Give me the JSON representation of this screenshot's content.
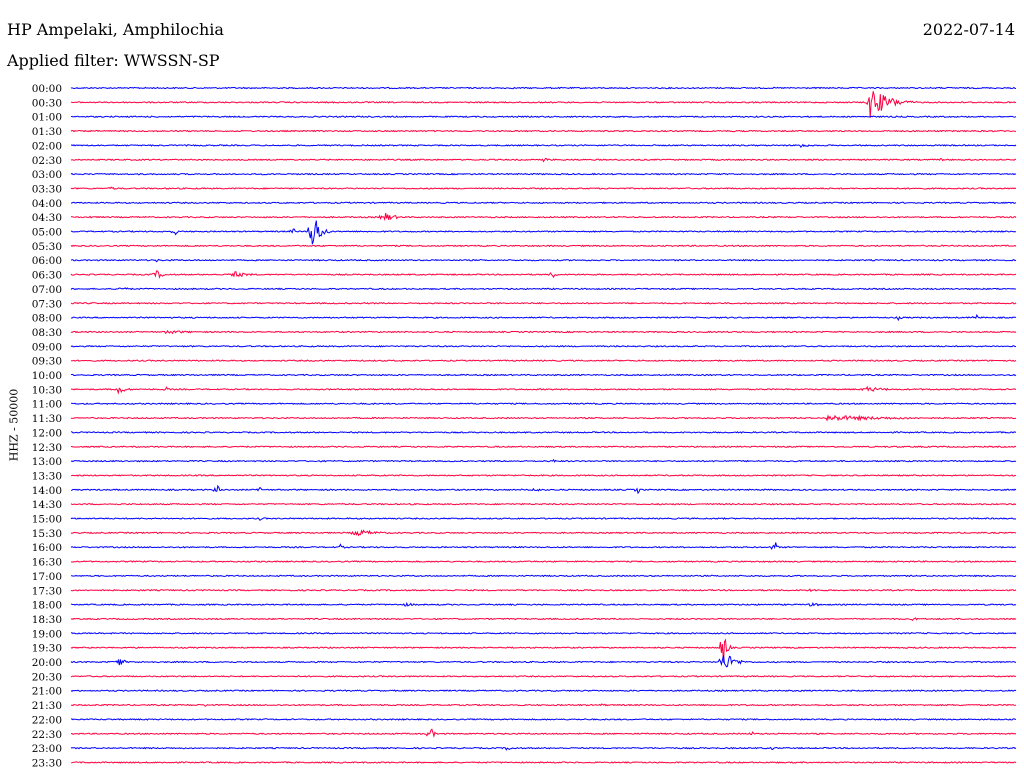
{
  "header": {
    "station": "HP Ampelaki, Amphilochia",
    "date": "2022-07-14",
    "filter": "Applied filter: WWSSN-SP"
  },
  "chart_data": {
    "type": "line",
    "title": "HP Ampelaki, Amphilochia",
    "ylabel": "HHZ - 50000",
    "trace_colors": [
      "#0000ff",
      "#ff0040"
    ],
    "rows": [
      {
        "label": "00:00",
        "color": "#0000ff",
        "events": []
      },
      {
        "label": "00:30",
        "color": "#ff0040",
        "events": [
          {
            "x": 0.845,
            "amp": 18,
            "w": 0.05
          }
        ]
      },
      {
        "label": "01:00",
        "color": "#0000ff",
        "events": []
      },
      {
        "label": "01:30",
        "color": "#ff0040",
        "events": []
      },
      {
        "label": "02:00",
        "color": "#0000ff",
        "events": [
          {
            "x": 0.77,
            "amp": 3,
            "w": 0.03
          }
        ]
      },
      {
        "label": "02:30",
        "color": "#ff0040",
        "events": [
          {
            "x": 0.5,
            "amp": 2,
            "w": 0.03
          },
          {
            "x": 0.92,
            "amp": 2,
            "w": 0.01
          }
        ]
      },
      {
        "label": "03:00",
        "color": "#0000ff",
        "events": []
      },
      {
        "label": "03:30",
        "color": "#ff0040",
        "events": [
          {
            "x": 0.04,
            "amp": 2,
            "w": 0.03
          }
        ]
      },
      {
        "label": "04:00",
        "color": "#0000ff",
        "events": []
      },
      {
        "label": "04:30",
        "color": "#ff0040",
        "events": [
          {
            "x": 0.33,
            "amp": 6,
            "w": 0.03
          },
          {
            "x": 0.02,
            "amp": 2,
            "w": 0.005
          }
        ]
      },
      {
        "label": "05:00",
        "color": "#0000ff",
        "events": [
          {
            "x": 0.255,
            "amp": 26,
            "w": 0.02
          },
          {
            "x": 0.11,
            "amp": 4,
            "w": 0.008
          },
          {
            "x": 0.235,
            "amp": 4,
            "w": 0.008
          }
        ]
      },
      {
        "label": "05:30",
        "color": "#ff0040",
        "events": []
      },
      {
        "label": "06:00",
        "color": "#0000ff",
        "events": [
          {
            "x": 0.09,
            "amp": 2,
            "w": 0.01
          }
        ]
      },
      {
        "label": "06:30",
        "color": "#ff0040",
        "events": [
          {
            "x": 0.09,
            "amp": 5,
            "w": 0.02
          },
          {
            "x": 0.17,
            "amp": 4,
            "w": 0.04
          },
          {
            "x": 0.51,
            "amp": 6,
            "w": 0.006
          }
        ]
      },
      {
        "label": "07:00",
        "color": "#0000ff",
        "events": [
          {
            "x": 0.05,
            "amp": 2,
            "w": 0.04
          }
        ]
      },
      {
        "label": "07:30",
        "color": "#ff0040",
        "events": []
      },
      {
        "label": "08:00",
        "color": "#0000ff",
        "events": [
          {
            "x": 0.875,
            "amp": 3,
            "w": 0.01
          },
          {
            "x": 0.958,
            "amp": 4,
            "w": 0.006
          }
        ]
      },
      {
        "label": "08:30",
        "color": "#ff0040",
        "events": [
          {
            "x": 0.1,
            "amp": 2,
            "w": 0.08
          }
        ]
      },
      {
        "label": "09:00",
        "color": "#0000ff",
        "events": []
      },
      {
        "label": "09:30",
        "color": "#ff0040",
        "events": []
      },
      {
        "label": "10:00",
        "color": "#0000ff",
        "events": []
      },
      {
        "label": "10:30",
        "color": "#ff0040",
        "events": [
          {
            "x": 0.05,
            "amp": 5,
            "w": 0.02
          },
          {
            "x": 0.1,
            "amp": 3,
            "w": 0.01
          },
          {
            "x": 0.84,
            "amp": 3,
            "w": 0.06
          }
        ]
      },
      {
        "label": "11:00",
        "color": "#0000ff",
        "events": []
      },
      {
        "label": "11:30",
        "color": "#ff0040",
        "events": [
          {
            "x": 0.8,
            "amp": 3,
            "w": 0.2
          }
        ]
      },
      {
        "label": "12:00",
        "color": "#0000ff",
        "events": []
      },
      {
        "label": "12:30",
        "color": "#ff0040",
        "events": []
      },
      {
        "label": "13:00",
        "color": "#0000ff",
        "events": [
          {
            "x": 0.51,
            "amp": 2,
            "w": 0.01
          }
        ]
      },
      {
        "label": "13:30",
        "color": "#ff0040",
        "events": []
      },
      {
        "label": "14:00",
        "color": "#0000ff",
        "events": [
          {
            "x": 0.155,
            "amp": 6,
            "w": 0.006
          },
          {
            "x": 0.2,
            "amp": 5,
            "w": 0.004
          },
          {
            "x": 0.49,
            "amp": 5,
            "w": 0.01
          },
          {
            "x": 0.6,
            "amp": 5,
            "w": 0.004
          }
        ]
      },
      {
        "label": "14:30",
        "color": "#ff0040",
        "events": [
          {
            "x": 0.58,
            "amp": 2,
            "w": 0.01
          }
        ]
      },
      {
        "label": "15:00",
        "color": "#0000ff",
        "events": [
          {
            "x": 0.2,
            "amp": 2,
            "w": 0.01
          }
        ]
      },
      {
        "label": "15:30",
        "color": "#ff0040",
        "events": [
          {
            "x": 0.3,
            "amp": 4,
            "w": 0.06
          }
        ]
      },
      {
        "label": "16:00",
        "color": "#0000ff",
        "events": [
          {
            "x": 0.745,
            "amp": 9,
            "w": 0.005
          },
          {
            "x": 0.285,
            "amp": 3,
            "w": 0.01
          }
        ]
      },
      {
        "label": "16:30",
        "color": "#ff0040",
        "events": []
      },
      {
        "label": "17:00",
        "color": "#0000ff",
        "events": []
      },
      {
        "label": "17:30",
        "color": "#ff0040",
        "events": [
          {
            "x": 0.78,
            "amp": 2,
            "w": 0.03
          }
        ]
      },
      {
        "label": "18:00",
        "color": "#0000ff",
        "events": [
          {
            "x": 0.35,
            "amp": 2,
            "w": 0.05
          },
          {
            "x": 0.78,
            "amp": 2,
            "w": 0.05
          }
        ]
      },
      {
        "label": "18:30",
        "color": "#ff0040",
        "events": [
          {
            "x": 0.89,
            "amp": 2,
            "w": 0.02
          }
        ]
      },
      {
        "label": "19:00",
        "color": "#0000ff",
        "events": []
      },
      {
        "label": "19:30",
        "color": "#ff0040",
        "events": [
          {
            "x": 0.69,
            "amp": 20,
            "w": 0.01
          }
        ]
      },
      {
        "label": "20:00",
        "color": "#0000ff",
        "events": [
          {
            "x": 0.69,
            "amp": 12,
            "w": 0.03
          },
          {
            "x": 0.05,
            "amp": 6,
            "w": 0.015
          }
        ]
      },
      {
        "label": "20:30",
        "color": "#ff0040",
        "events": []
      },
      {
        "label": "21:00",
        "color": "#0000ff",
        "events": []
      },
      {
        "label": "21:30",
        "color": "#ff0040",
        "events": [
          {
            "x": 0.14,
            "amp": 2,
            "w": 0.02
          },
          {
            "x": 0.56,
            "amp": 2,
            "w": 0.02
          }
        ]
      },
      {
        "label": "22:00",
        "color": "#0000ff",
        "events": []
      },
      {
        "label": "22:30",
        "color": "#ff0040",
        "events": [
          {
            "x": 0.38,
            "amp": 8,
            "w": 0.01
          },
          {
            "x": 0.72,
            "amp": 3,
            "w": 0.008
          }
        ]
      },
      {
        "label": "23:00",
        "color": "#0000ff",
        "events": [
          {
            "x": 0.46,
            "amp": 2,
            "w": 0.04
          },
          {
            "x": 0.74,
            "amp": 2,
            "w": 0.02
          }
        ]
      },
      {
        "label": "23:30",
        "color": "#ff0040",
        "events": []
      }
    ]
  }
}
